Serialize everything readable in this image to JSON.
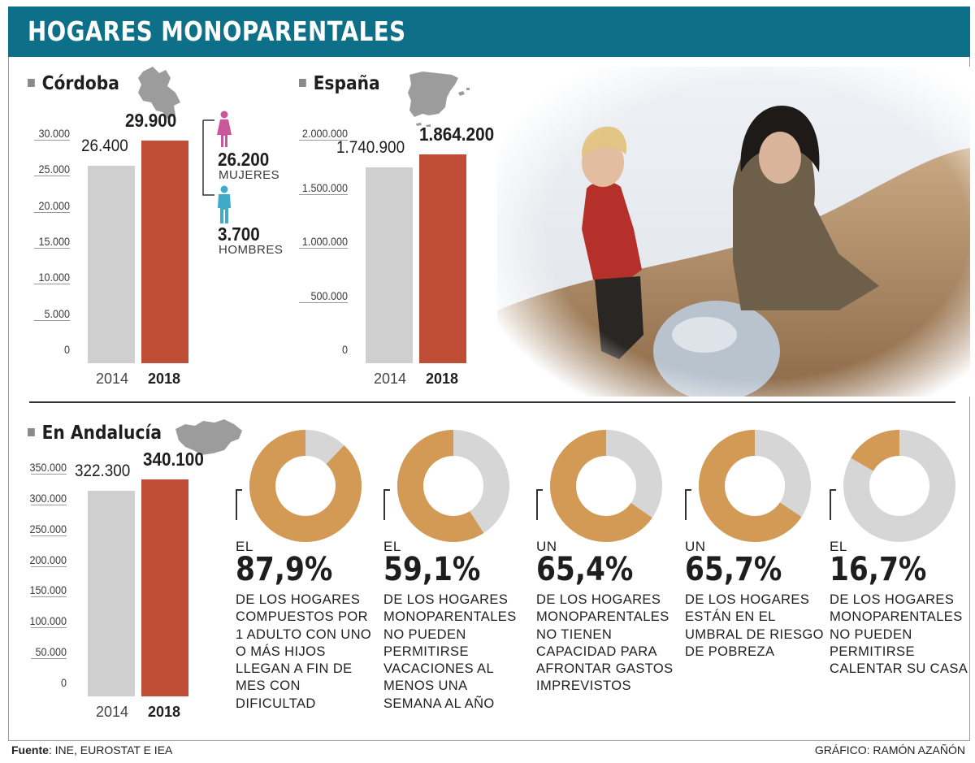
{
  "title": "HOGARES MONOPARENTALES",
  "colors": {
    "header": "#0e7088",
    "bar_2014": "#cfcfcf",
    "bar_2018": "#c04e36",
    "donut_fill": "#d39a55",
    "donut_rest": "#d6d6d6",
    "female": "#c9579c",
    "male": "#3eabc9"
  },
  "cordoba": {
    "heading": "Córdoba",
    "female": {
      "value": "26.200",
      "label": "MUJERES",
      "icon": "woman-icon"
    },
    "male": {
      "value": "3.700",
      "label": "HOMBRES",
      "icon": "man-icon"
    }
  },
  "espana": {
    "heading": "España"
  },
  "andalucia": {
    "heading": "En Andalucía"
  },
  "chart_data": [
    {
      "type": "bar",
      "region": "Córdoba",
      "categories": [
        "2014",
        "2018"
      ],
      "values": [
        26400,
        29900
      ],
      "value_labels": [
        "26.400",
        "29.900"
      ],
      "ylim": [
        0,
        30000
      ],
      "ticks": [
        "0",
        "5.000",
        "10.000",
        "15.000",
        "20.000",
        "25.000",
        "30.000"
      ]
    },
    {
      "type": "bar",
      "region": "España",
      "categories": [
        "2014",
        "2018"
      ],
      "values": [
        1740900,
        1864200
      ],
      "value_labels": [
        "1.740.900",
        "1.864.200"
      ],
      "ylim": [
        0,
        2000000
      ],
      "ticks": [
        "0",
        "500.000",
        "1.000.000",
        "1.500.000",
        "2.000.000"
      ]
    },
    {
      "type": "bar",
      "region": "Andalucía",
      "categories": [
        "2014",
        "2018"
      ],
      "values": [
        322300,
        340100
      ],
      "value_labels": [
        "322.300",
        "340.100"
      ],
      "ylim": [
        0,
        350000
      ],
      "ticks": [
        "0",
        "50.000",
        "100.000",
        "150.000",
        "200.000",
        "250.000",
        "300.000",
        "350.000"
      ]
    }
  ],
  "stats": [
    {
      "pre": "EL",
      "pct_label": "87,9%",
      "value": 87.9,
      "desc": "DE LOS HOGARES COMPUESTOS POR 1 ADULTO CON UNO O MÁS HIJOS LLEGAN A FIN DE MES CON DIFICULTAD"
    },
    {
      "pre": "EL",
      "pct_label": "59,1%",
      "value": 59.1,
      "desc": "DE LOS HOGARES MONOPARENTALES NO PUEDEN PERMITIRSE VACACIONES AL MENOS UNA SEMANA AL AÑO"
    },
    {
      "pre": "UN",
      "pct_label": "65,4%",
      "value": 65.4,
      "desc": "DE LOS HOGARES MONOPARENTALES NO TIENEN CAPACIDAD PARA AFRONTAR GASTOS IMPREVISTOS"
    },
    {
      "pre": "UN",
      "pct_label": "65,7%",
      "value": 65.7,
      "desc": "DE LOS HOGARES ESTÁN EN EL UMBRAL DE RIESGO DE POBREZA"
    },
    {
      "pre": "EL",
      "pct_label": "16,7%",
      "value": 16.7,
      "desc": "DE LOS HOGARES MONOPARENTALES NO PUEDEN PERMITIRSE CALENTAR SU CASA"
    }
  ],
  "footer": {
    "source_label": "Fuente",
    "source_text": ": INE, EUROSTAT E IEA",
    "credit": "GRÁFICO: RAMÓN AZAÑÓN"
  }
}
